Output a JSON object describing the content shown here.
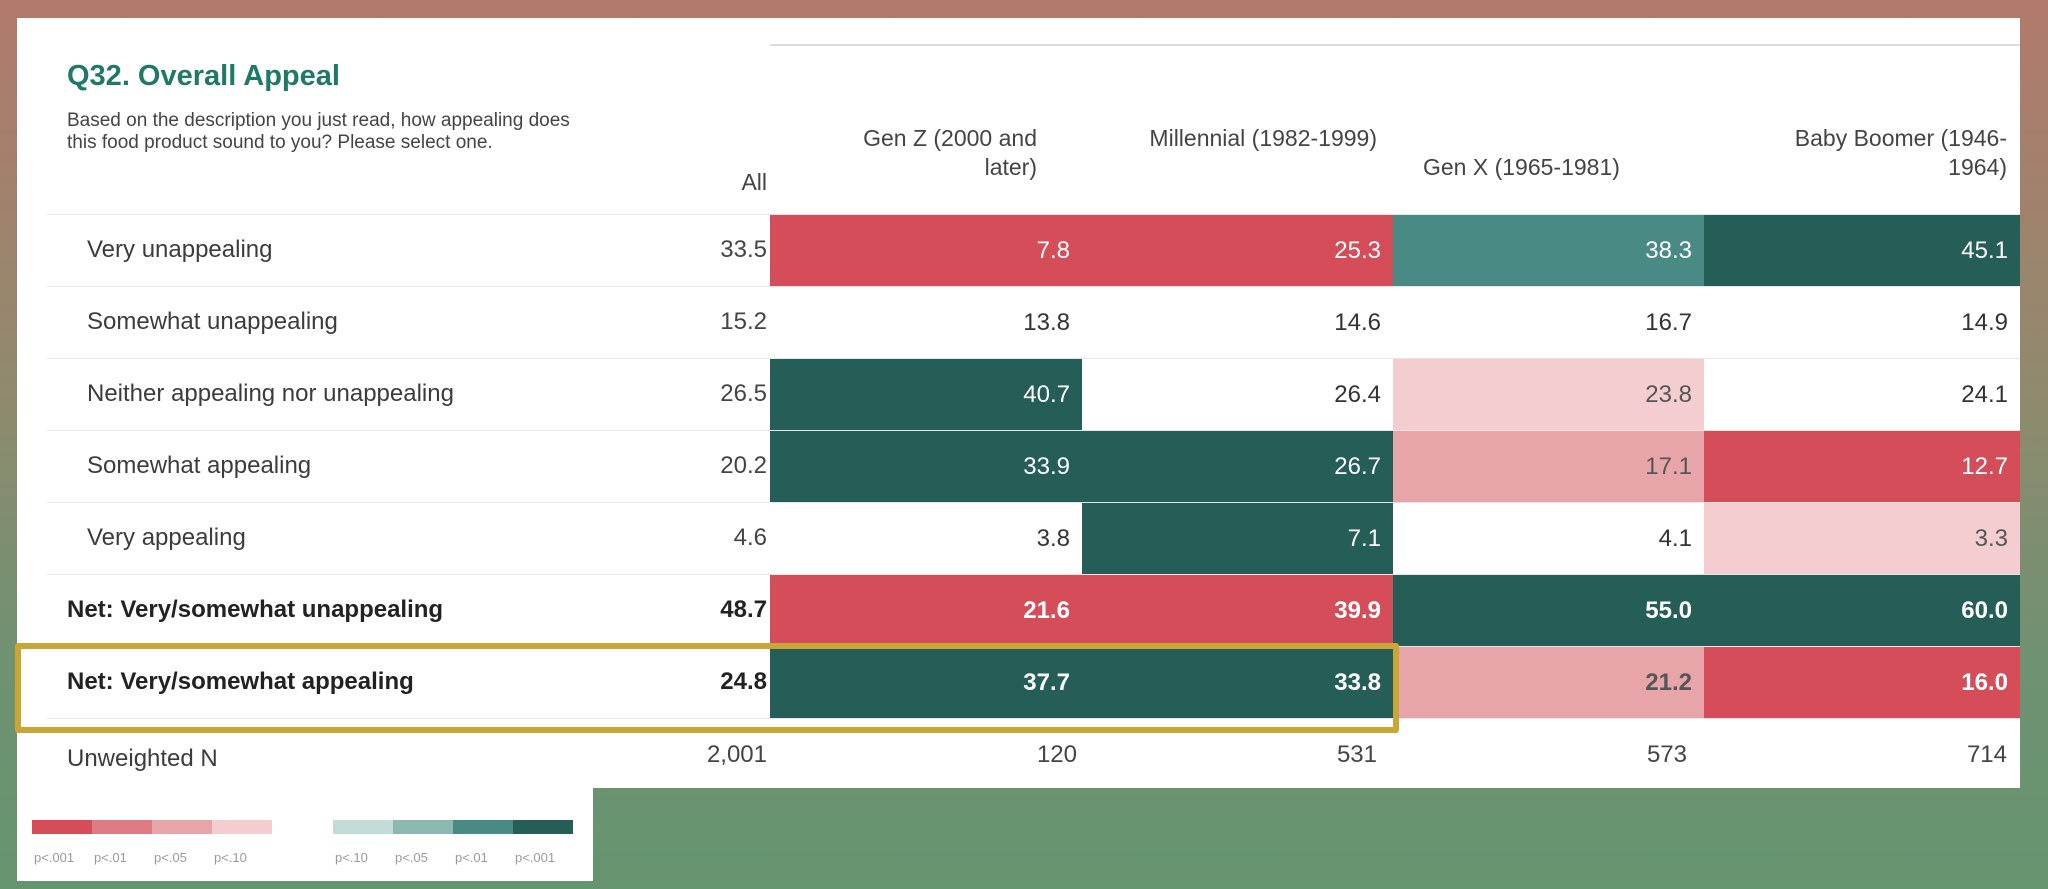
{
  "chart_data": {
    "type": "table",
    "title": "Q32. Overall Appeal",
    "subtitle": "Based on the description you just read, how appealing does this food product sound to you? Please select one.",
    "columns": [
      "All",
      "Gen Z (2000 and later)",
      "Millennial (1982-1999)",
      "Gen X (1965-1981)",
      "Baby Boomer (1946-1964)"
    ],
    "rows": [
      {
        "label": "Very unappealing",
        "bold": false,
        "values": [
          "33.5",
          "7.8",
          "25.3",
          "38.3",
          "45.1"
        ],
        "sig": [
          "none",
          "red-p001",
          "red-p001",
          "green-p01",
          "green-p001"
        ]
      },
      {
        "label": "Somewhat unappealing",
        "bold": false,
        "values": [
          "15.2",
          "13.8",
          "14.6",
          "16.7",
          "14.9"
        ],
        "sig": [
          "none",
          "none",
          "none",
          "none",
          "none"
        ]
      },
      {
        "label": "Neither appealing nor unappealing",
        "bold": false,
        "values": [
          "26.5",
          "40.7",
          "26.4",
          "23.8",
          "24.1"
        ],
        "sig": [
          "none",
          "green-p001",
          "none",
          "red-p10",
          "none"
        ]
      },
      {
        "label": "Somewhat appealing",
        "bold": false,
        "values": [
          "20.2",
          "33.9",
          "26.7",
          "17.1",
          "12.7"
        ],
        "sig": [
          "none",
          "green-p001",
          "green-p001",
          "red-p05",
          "red-p001"
        ]
      },
      {
        "label": "Very appealing",
        "bold": false,
        "values": [
          "4.6",
          "3.8",
          "7.1",
          "4.1",
          "3.3"
        ],
        "sig": [
          "none",
          "none",
          "green-p001",
          "none",
          "red-p10"
        ]
      },
      {
        "label": "Net: Very/somewhat unappealing",
        "bold": true,
        "values": [
          "48.7",
          "21.6",
          "39.9",
          "55.0",
          "60.0"
        ],
        "sig": [
          "none",
          "red-p001",
          "red-p001",
          "green-p001",
          "green-p001"
        ]
      },
      {
        "label": "Net: Very/somewhat appealing",
        "bold": true,
        "values": [
          "24.8",
          "37.7",
          "33.8",
          "21.2",
          "16.0"
        ],
        "sig": [
          "none",
          "green-p001",
          "green-p001",
          "red-p05",
          "red-p001"
        ]
      }
    ],
    "unweighted_n": {
      "label": "Unweighted N",
      "values": [
        "2,001",
        "120",
        "531",
        "573",
        "714"
      ]
    },
    "highlighted_row": "Net: Very/somewhat appealing",
    "legend": {
      "red": [
        {
          "label": "p<.001",
          "color": "#d44d59"
        },
        {
          "label": "p<.01",
          "color": "#e07a83"
        },
        {
          "label": "p<.05",
          "color": "#e8a5a9"
        },
        {
          "label": "p<.10",
          "color": "#f3cdd0"
        }
      ],
      "green": [
        {
          "label": "p<.10",
          "color": "#c4dcd9"
        },
        {
          "label": "p<.05",
          "color": "#8cb8b2"
        },
        {
          "label": "p<.01",
          "color": "#4a8a85"
        },
        {
          "label": "p<.001",
          "color": "#245e57"
        }
      ]
    }
  },
  "colors": {
    "red-p001": "#d44d59",
    "red-p01": "#e07a83",
    "red-p05": "#e8a5a9",
    "red-p10": "#f3cdd0",
    "green-p10": "#c4dcd9",
    "green-p05": "#8cb8b2",
    "green-p01": "#4a8a85",
    "green-p001": "#245e57",
    "title": "#1e7a67",
    "highlight": "#c9a636"
  }
}
